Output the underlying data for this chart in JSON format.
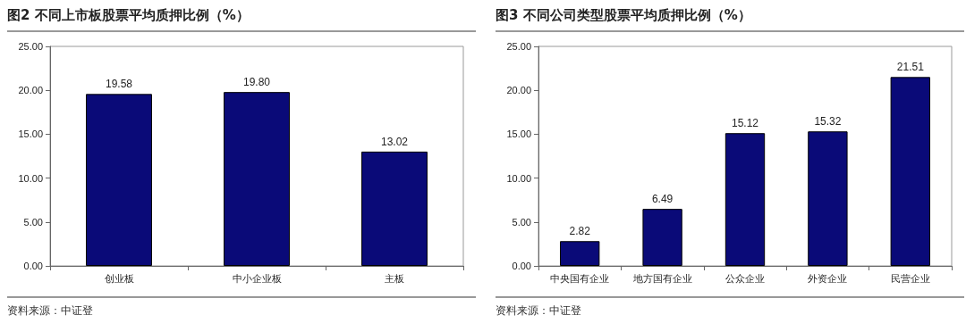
{
  "chart_data": [
    {
      "type": "bar",
      "title": "图2  不同上市板股票平均质押比例（%）",
      "categories": [
        "创业板",
        "中小企业板",
        "主板"
      ],
      "values": [
        19.58,
        19.8,
        13.02
      ],
      "value_labels": [
        "19.58",
        "19.80",
        "13.02"
      ],
      "color": "#0a0a78",
      "ylim": [
        0,
        25
      ],
      "yticks": [
        {
          "value": 0,
          "label": "0.00"
        },
        {
          "value": 5,
          "label": "5.00"
        },
        {
          "value": 10,
          "label": "10.00"
        },
        {
          "value": 15,
          "label": "15.00"
        },
        {
          "value": 20,
          "label": "20.00"
        },
        {
          "value": 25,
          "label": "25.00"
        }
      ],
      "grid": false,
      "annotations": [
        "资料来源：中证登"
      ]
    },
    {
      "type": "bar",
      "title": "图3  不同公司类型股票平均质押比例（%）",
      "categories": [
        "中央国有企业",
        "地方国有企业",
        "公众企业",
        "外资企业",
        "民营企业"
      ],
      "values": [
        2.82,
        6.49,
        15.12,
        15.32,
        21.51
      ],
      "value_labels": [
        "2.82",
        "6.49",
        "15.12",
        "15.32",
        "21.51"
      ],
      "color": "#0a0a78",
      "ylim": [
        0,
        25
      ],
      "yticks": [
        {
          "value": 0,
          "label": "0.00"
        },
        {
          "value": 5,
          "label": "5.00"
        },
        {
          "value": 10,
          "label": "10.00"
        },
        {
          "value": 15,
          "label": "15.00"
        },
        {
          "value": 20,
          "label": "20.00"
        },
        {
          "value": 25,
          "label": "25.00"
        }
      ],
      "grid": false,
      "annotations": [
        "资料来源：中证登"
      ]
    }
  ]
}
